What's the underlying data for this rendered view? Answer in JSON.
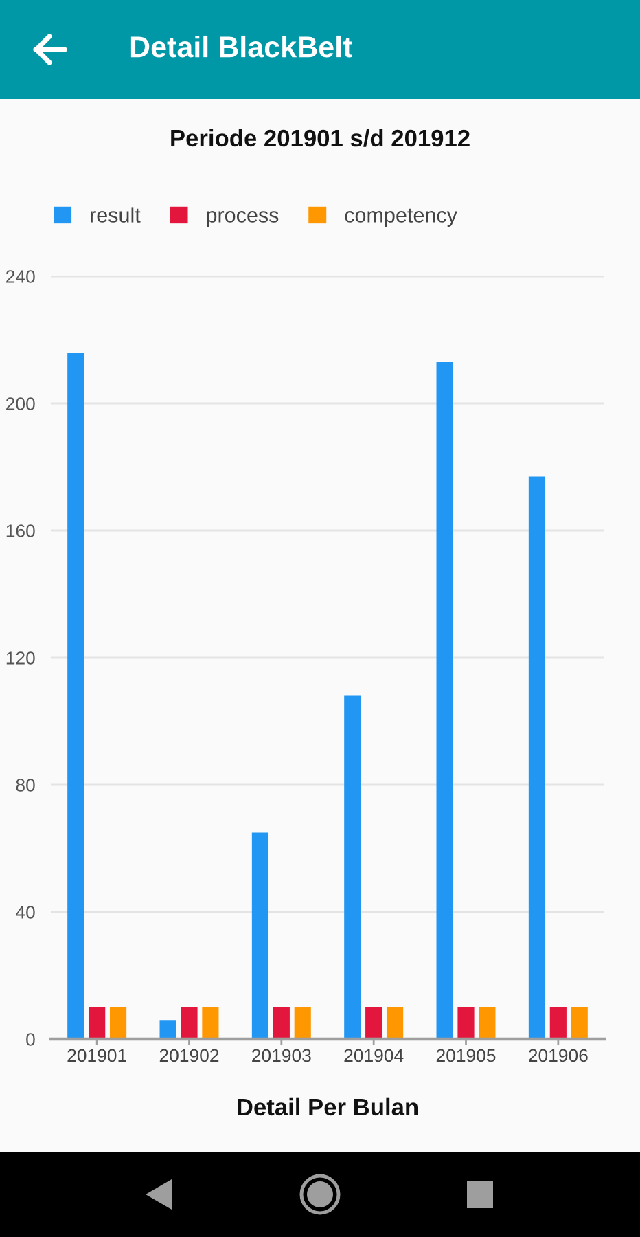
{
  "chart_data": {
    "type": "bar",
    "title": "Detail BlackBelt",
    "subtitle": "Periode 201901 s/d 201912",
    "xlabel": "Detail Per Bulan",
    "categories": [
      "201901",
      "201902",
      "201903",
      "201904",
      "201905",
      "201906"
    ],
    "series": [
      {
        "name": "result",
        "color": "#2196f3",
        "values": [
          216,
          6,
          65,
          108,
          213,
          177
        ]
      },
      {
        "name": "process",
        "color": "#e3173d",
        "values": [
          10,
          10,
          10,
          10,
          10,
          10
        ]
      },
      {
        "name": "competency",
        "color": "#ff9800",
        "values": [
          10,
          10,
          10,
          10,
          10,
          10
        ]
      }
    ],
    "ylim": [
      0,
      240
    ],
    "yticks": [
      0,
      40,
      80,
      120,
      160,
      200,
      240
    ],
    "grid": "y",
    "legend": "top left"
  }
}
